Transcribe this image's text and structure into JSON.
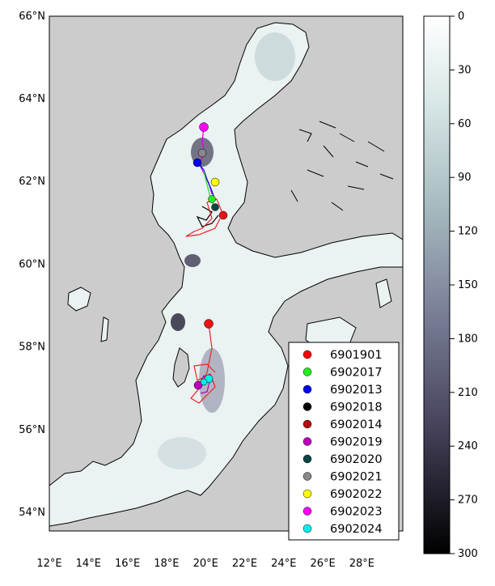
{
  "map": {
    "lon_ticks": [
      "12°E",
      "14°E",
      "16°E",
      "18°E",
      "20°E",
      "22°E",
      "24°E",
      "26°E",
      "28°E"
    ],
    "lat_ticks": [
      "54°N",
      "56°N",
      "58°N",
      "60°N",
      "62°N",
      "64°N",
      "66°N"
    ],
    "land_color": "#cccccc",
    "water_shallow": "#f5f9f9",
    "water_deep": "#33303e"
  },
  "colorbar": {
    "ticks": [
      "0",
      "30",
      "60",
      "90",
      "120",
      "150",
      "180",
      "210",
      "240",
      "270",
      "300"
    ],
    "range": [
      0,
      300
    ],
    "colormap": "bone_r"
  },
  "legend": {
    "location": "lower-right",
    "entries": [
      {
        "label": "6901901",
        "color": "#ff0000"
      },
      {
        "label": "6902017",
        "color": "#22ee22"
      },
      {
        "label": "6902013",
        "color": "#0000ee"
      },
      {
        "label": "6902018",
        "color": "#000000"
      },
      {
        "label": "6902014",
        "color": "#b01010"
      },
      {
        "label": "6902019",
        "color": "#bb00bb"
      },
      {
        "label": "6902020",
        "color": "#0a4545"
      },
      {
        "label": "6902021",
        "color": "#888888"
      },
      {
        "label": "6902022",
        "color": "#ffff00"
      },
      {
        "label": "6902023",
        "color": "#ff00ff"
      },
      {
        "label": "6902024",
        "color": "#00eeee"
      }
    ]
  }
}
